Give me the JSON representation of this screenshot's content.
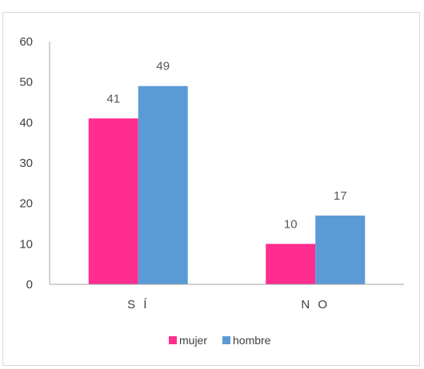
{
  "chart_data": {
    "type": "bar",
    "categories": [
      "S Í",
      "N O"
    ],
    "series": [
      {
        "name": "mujer",
        "values": [
          41,
          10
        ],
        "color": "#ff2d8f"
      },
      {
        "name": "hombre",
        "values": [
          49,
          17
        ],
        "color": "#5b9bd5"
      }
    ],
    "ylim": [
      0,
      60
    ],
    "yticks": [
      0,
      10,
      20,
      30,
      40,
      50,
      60
    ],
    "grid": false,
    "legend_position": "bottom",
    "title": "",
    "xlabel": "",
    "ylabel": ""
  }
}
